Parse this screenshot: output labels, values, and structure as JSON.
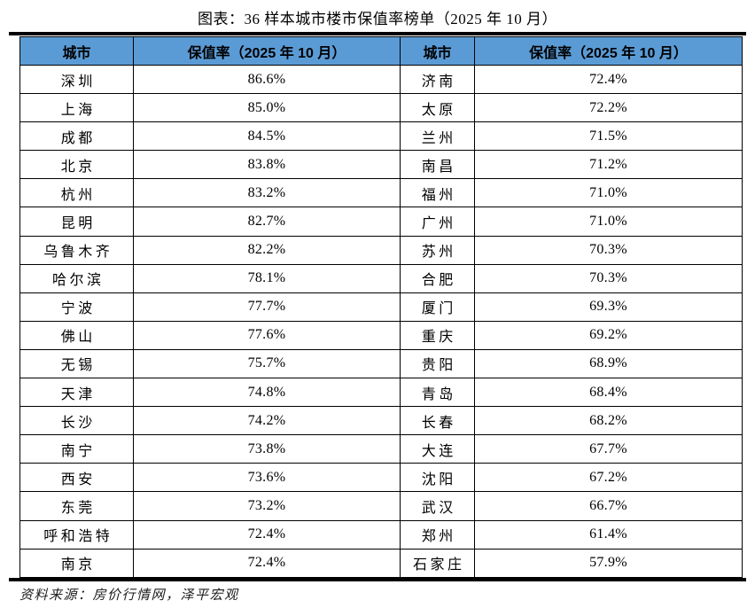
{
  "title": "图表：36 样本城市楼市保值率榜单（2025 年 10 月）",
  "source_note": "资料来源：房价行情网，泽平宏观",
  "colors": {
    "header_bg": "#5B9BD5",
    "border": "#000000",
    "page_rule": "#000000"
  },
  "table": {
    "headers": [
      "城市",
      "保值率（2025 年 10 月）",
      "城市",
      "保值率（2025 年 10 月）"
    ],
    "rows": [
      [
        "深圳",
        "86.6%",
        "济南",
        "72.4%"
      ],
      [
        "上海",
        "85.0%",
        "太原",
        "72.2%"
      ],
      [
        "成都",
        "84.5%",
        "兰州",
        "71.5%"
      ],
      [
        "北京",
        "83.8%",
        "南昌",
        "71.2%"
      ],
      [
        "杭州",
        "83.2%",
        "福州",
        "71.0%"
      ],
      [
        "昆明",
        "82.7%",
        "广州",
        "71.0%"
      ],
      [
        "乌鲁木齐",
        "82.2%",
        "苏州",
        "70.3%"
      ],
      [
        "哈尔滨",
        "78.1%",
        "合肥",
        "70.3%"
      ],
      [
        "宁波",
        "77.7%",
        "厦门",
        "69.3%"
      ],
      [
        "佛山",
        "77.6%",
        "重庆",
        "69.2%"
      ],
      [
        "无锡",
        "75.7%",
        "贵阳",
        "68.9%"
      ],
      [
        "天津",
        "74.8%",
        "青岛",
        "68.4%"
      ],
      [
        "长沙",
        "74.2%",
        "长春",
        "68.2%"
      ],
      [
        "南宁",
        "73.8%",
        "大连",
        "67.7%"
      ],
      [
        "西安",
        "73.6%",
        "沈阳",
        "67.2%"
      ],
      [
        "东莞",
        "73.2%",
        "武汉",
        "66.7%"
      ],
      [
        "呼和浩特",
        "72.4%",
        "郑州",
        "61.4%"
      ],
      [
        "南京",
        "72.4%",
        "石家庄",
        "57.9%"
      ]
    ]
  },
  "chart_data": {
    "type": "table",
    "title": "图表：36 样本城市楼市保值率榜单（2025 年 10 月）",
    "columns": [
      "城市",
      "保值率（2025 年 10 月）"
    ],
    "records": [
      {
        "city": "深圳",
        "rate": "86.6%"
      },
      {
        "city": "上海",
        "rate": "85.0%"
      },
      {
        "city": "成都",
        "rate": "84.5%"
      },
      {
        "city": "北京",
        "rate": "83.8%"
      },
      {
        "city": "杭州",
        "rate": "83.2%"
      },
      {
        "city": "昆明",
        "rate": "82.7%"
      },
      {
        "city": "乌鲁木齐",
        "rate": "82.2%"
      },
      {
        "city": "哈尔滨",
        "rate": "78.1%"
      },
      {
        "city": "宁波",
        "rate": "77.7%"
      },
      {
        "city": "佛山",
        "rate": "77.6%"
      },
      {
        "city": "无锡",
        "rate": "75.7%"
      },
      {
        "city": "天津",
        "rate": "74.8%"
      },
      {
        "city": "长沙",
        "rate": "74.2%"
      },
      {
        "city": "南宁",
        "rate": "73.8%"
      },
      {
        "city": "西安",
        "rate": "73.6%"
      },
      {
        "city": "东莞",
        "rate": "73.2%"
      },
      {
        "city": "呼和浩特",
        "rate": "72.4%"
      },
      {
        "city": "南京",
        "rate": "72.4%"
      },
      {
        "city": "济南",
        "rate": "72.4%"
      },
      {
        "city": "太原",
        "rate": "72.2%"
      },
      {
        "city": "兰州",
        "rate": "71.5%"
      },
      {
        "city": "南昌",
        "rate": "71.2%"
      },
      {
        "city": "福州",
        "rate": "71.0%"
      },
      {
        "city": "广州",
        "rate": "71.0%"
      },
      {
        "city": "苏州",
        "rate": "70.3%"
      },
      {
        "city": "合肥",
        "rate": "70.3%"
      },
      {
        "city": "厦门",
        "rate": "69.3%"
      },
      {
        "city": "重庆",
        "rate": "69.2%"
      },
      {
        "city": "贵阳",
        "rate": "68.9%"
      },
      {
        "city": "青岛",
        "rate": "68.4%"
      },
      {
        "city": "长春",
        "rate": "68.2%"
      },
      {
        "city": "大连",
        "rate": "67.7%"
      },
      {
        "city": "沈阳",
        "rate": "67.2%"
      },
      {
        "city": "武汉",
        "rate": "66.7%"
      },
      {
        "city": "郑州",
        "rate": "61.4%"
      },
      {
        "city": "石家庄",
        "rate": "57.9%"
      }
    ]
  }
}
